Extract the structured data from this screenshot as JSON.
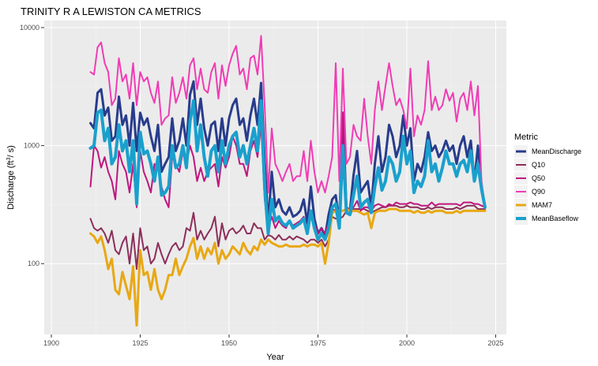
{
  "chart_data": {
    "type": "line",
    "title": "TRINITY R A LEWISTON CA  METRICS",
    "xlabel": "Year",
    "ylabel_main": "Discharge (ft",
    "ylabel_sup": "3",
    "ylabel_end": "/ s)",
    "xlim": [
      1898,
      2028
    ],
    "ylim_log10": [
      1.4,
      4.06
    ],
    "log_y": true,
    "grid": true,
    "legend_position": "right",
    "legend_title": "Metric",
    "x_ticks": [
      {
        "value": 1900,
        "label": "1900"
      },
      {
        "value": 1925,
        "label": "1925"
      },
      {
        "value": 1950,
        "label": "1950"
      },
      {
        "value": 1975,
        "label": "1975"
      },
      {
        "value": 2000,
        "label": "2000"
      },
      {
        "value": 2025,
        "label": "2025"
      }
    ],
    "y_ticks": [
      {
        "value": 100,
        "label": "100"
      },
      {
        "value": 1000,
        "label": "1000"
      },
      {
        "value": 10000,
        "label": "10000"
      }
    ],
    "x": [
      1911,
      1912,
      1913,
      1914,
      1915,
      1916,
      1917,
      1918,
      1919,
      1920,
      1921,
      1922,
      1923,
      1924,
      1925,
      1926,
      1927,
      1928,
      1929,
      1930,
      1931,
      1932,
      1933,
      1934,
      1935,
      1936,
      1937,
      1938,
      1939,
      1940,
      1941,
      1942,
      1943,
      1944,
      1945,
      1946,
      1947,
      1948,
      1949,
      1950,
      1951,
      1952,
      1953,
      1954,
      1955,
      1956,
      1957,
      1958,
      1959,
      1960,
      1961,
      1962,
      1963,
      1964,
      1965,
      1966,
      1967,
      1968,
      1969,
      1970,
      1971,
      1972,
      1973,
      1974,
      1975,
      1976,
      1977,
      1978,
      1979,
      1980,
      1981,
      1982,
      1983,
      1984,
      1985,
      1986,
      1987,
      1988,
      1989,
      1990,
      1991,
      1992,
      1993,
      1994,
      1995,
      1996,
      1997,
      1998,
      1999,
      2000,
      2001,
      2002,
      2003,
      2004,
      2005,
      2006,
      2007,
      2008,
      2009,
      2010,
      2011,
      2012,
      2013,
      2014,
      2015,
      2016,
      2017,
      2018,
      2019,
      2020,
      2021,
      2022
    ],
    "series": [
      {
        "name": "MeanDischarge",
        "color": "#283c8c",
        "width": 3,
        "values": [
          1550,
          1400,
          2800,
          3000,
          1800,
          2100,
          1100,
          1200,
          2600,
          1500,
          1800,
          1000,
          2300,
          900,
          1900,
          1500,
          1700,
          1200,
          900,
          1500,
          600,
          700,
          800,
          1700,
          900,
          1100,
          1700,
          1000,
          2700,
          3500,
          1500,
          2500,
          1400,
          1000,
          1500,
          1600,
          900,
          1700,
          1000,
          1700,
          2200,
          2500,
          1500,
          1700,
          1100,
          1800,
          2500,
          1500,
          3400,
          750,
          220,
          600,
          300,
          350,
          280,
          260,
          300,
          250,
          260,
          280,
          350,
          220,
          450,
          240,
          180,
          200,
          170,
          260,
          350,
          380,
          220,
          1900,
          300,
          280,
          560,
          900,
          400,
          450,
          500,
          300,
          700,
          1200,
          600,
          800,
          1500,
          1200,
          800,
          1000,
          1800,
          1000,
          1400,
          500,
          700,
          600,
          800,
          1300,
          900,
          1000,
          800,
          900,
          1100,
          900,
          1000,
          700,
          1000,
          1200,
          800,
          1100,
          500,
          1000,
          460,
          300
        ]
      },
      {
        "name": "Q10",
        "color": "#8c2e5a",
        "width": 2,
        "values": [
          240,
          200,
          190,
          200,
          180,
          150,
          190,
          130,
          120,
          150,
          170,
          100,
          180,
          90,
          200,
          130,
          140,
          100,
          110,
          150,
          120,
          100,
          120,
          140,
          150,
          130,
          140,
          200,
          190,
          270,
          160,
          190,
          160,
          180,
          200,
          250,
          140,
          220,
          160,
          190,
          200,
          180,
          190,
          210,
          180,
          180,
          220,
          200,
          200,
          160,
          175,
          170,
          160,
          175,
          160,
          160,
          170,
          160,
          170,
          165,
          160,
          150,
          160,
          160,
          150,
          160,
          140,
          160,
          250,
          240,
          240,
          250,
          280,
          260,
          290,
          290,
          290,
          290,
          280,
          270,
          280,
          290,
          300,
          300,
          310,
          310,
          310,
          300,
          300,
          310,
          300,
          300,
          300,
          290,
          290,
          300,
          290,
          300,
          300,
          300,
          290,
          290,
          290,
          300,
          290,
          300,
          310,
          310,
          310,
          290,
          290,
          290
        ]
      },
      {
        "name": "Q50",
        "color": "#c0157f",
        "width": 2,
        "values": [
          450,
          1000,
          900,
          650,
          800,
          600,
          500,
          350,
          900,
          700,
          600,
          400,
          700,
          300,
          900,
          600,
          500,
          400,
          700,
          650,
          450,
          350,
          300,
          800,
          700,
          600,
          900,
          700,
          1000,
          800,
          500,
          650,
          500,
          600,
          650,
          700,
          450,
          800,
          650,
          800,
          1200,
          1000,
          700,
          700,
          550,
          900,
          1100,
          800,
          1500,
          350,
          200,
          250,
          200,
          230,
          210,
          200,
          230,
          210,
          220,
          230,
          250,
          200,
          270,
          220,
          180,
          200,
          180,
          220,
          290,
          280,
          200,
          1900,
          290,
          290,
          300,
          340,
          280,
          300,
          300,
          280,
          310,
          320,
          310,
          300,
          320,
          310,
          330,
          320,
          320,
          320,
          330,
          320,
          320,
          310,
          310,
          310,
          330,
          310,
          320,
          320,
          320,
          320,
          320,
          320,
          310,
          330,
          330,
          330,
          320,
          320,
          310,
          300
        ]
      },
      {
        "name": "Q90",
        "color": "#f03cb4",
        "width": 2,
        "values": [
          4200,
          4000,
          6800,
          7500,
          5000,
          4200,
          2200,
          2500,
          5500,
          3500,
          4000,
          2500,
          5000,
          2200,
          4200,
          3500,
          3800,
          2800,
          2300,
          3500,
          1500,
          1700,
          1800,
          3800,
          2300,
          2800,
          3800,
          2500,
          4800,
          5500,
          3000,
          4500,
          3000,
          2800,
          4200,
          5000,
          2500,
          4800,
          3200,
          4800,
          6000,
          7000,
          4000,
          4500,
          3000,
          5500,
          5800,
          4000,
          8500,
          2200,
          400,
          1400,
          700,
          600,
          500,
          600,
          700,
          500,
          550,
          550,
          900,
          500,
          1100,
          600,
          400,
          500,
          400,
          550,
          800,
          5000,
          500,
          4500,
          700,
          800,
          1500,
          1200,
          1100,
          2500,
          1200,
          700,
          2000,
          3500,
          2000,
          3200,
          5000,
          3200,
          2200,
          2500,
          2000,
          1400,
          4500,
          1200,
          1800,
          1500,
          2000,
          5200,
          2000,
          2600,
          2000,
          2200,
          3000,
          2400,
          2800,
          1600,
          2500,
          2800,
          2000,
          3500,
          1800,
          3200,
          500,
          300
        ]
      },
      {
        "name": "MAM7",
        "color": "#e8a813",
        "width": 3,
        "values": [
          180,
          170,
          150,
          170,
          130,
          90,
          110,
          60,
          55,
          85,
          65,
          50,
          95,
          30,
          130,
          80,
          85,
          60,
          90,
          60,
          50,
          60,
          80,
          80,
          110,
          80,
          95,
          110,
          140,
          165,
          110,
          140,
          110,
          135,
          120,
          150,
          100,
          130,
          110,
          120,
          140,
          130,
          120,
          150,
          130,
          120,
          140,
          130,
          160,
          145,
          160,
          150,
          145,
          140,
          140,
          145,
          140,
          140,
          140,
          140,
          145,
          140,
          145,
          145,
          140,
          150,
          100,
          150,
          270,
          280,
          280,
          280,
          290,
          280,
          280,
          280,
          270,
          260,
          270,
          200,
          270,
          280,
          280,
          280,
          290,
          290,
          290,
          280,
          280,
          280,
          280,
          270,
          280,
          270,
          270,
          280,
          270,
          280,
          280,
          280,
          270,
          270,
          270,
          280,
          270,
          280,
          280,
          280,
          280,
          280,
          280,
          280
        ]
      },
      {
        "name": "MeanBaseflow",
        "color": "#1aa0cd",
        "width": 4,
        "values": [
          950,
          1000,
          1900,
          2000,
          1100,
          1400,
          700,
          800,
          1500,
          900,
          1100,
          600,
          1100,
          320,
          1300,
          850,
          900,
          700,
          500,
          800,
          380,
          400,
          450,
          1000,
          650,
          700,
          1000,
          650,
          1600,
          2400,
          900,
          1500,
          800,
          550,
          900,
          1000,
          600,
          1100,
          700,
          1000,
          1200,
          1300,
          800,
          1000,
          700,
          1000,
          1400,
          900,
          2400,
          450,
          180,
          350,
          230,
          250,
          220,
          210,
          230,
          200,
          210,
          220,
          240,
          180,
          280,
          200,
          160,
          180,
          160,
          200,
          300,
          320,
          200,
          1000,
          270,
          260,
          380,
          550,
          300,
          330,
          350,
          270,
          450,
          650,
          420,
          500,
          800,
          700,
          500,
          600,
          1200,
          700,
          900,
          400,
          500,
          450,
          550,
          1100,
          600,
          700,
          500,
          650,
          900,
          700,
          700,
          550,
          700,
          750,
          600,
          900,
          500,
          700,
          430,
          300
        ]
      }
    ]
  }
}
